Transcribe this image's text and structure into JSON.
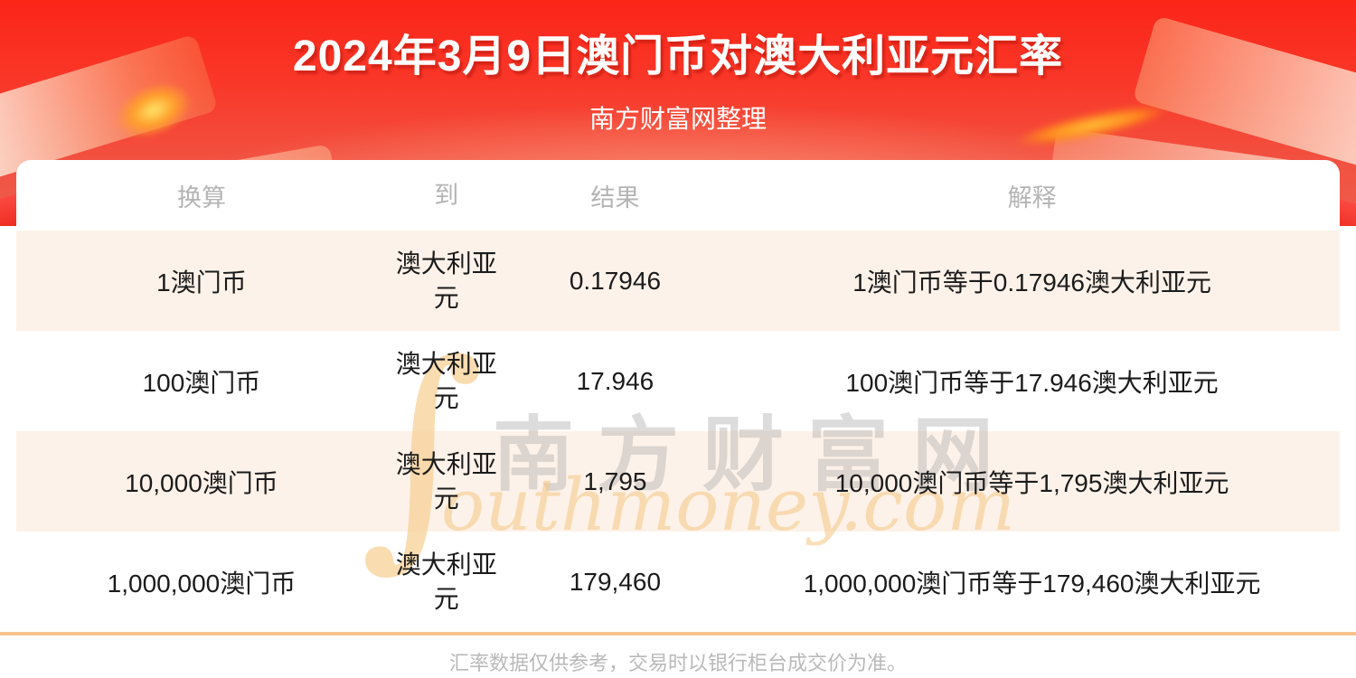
{
  "page": {
    "title": "2024年3月9日澳门币对澳大利亚元汇率",
    "subtitle": "南方财富网整理",
    "footer_note": "汇率数据仅供参考，交易时以银行柜台成交价为准。"
  },
  "watermark": {
    "swash": "∫",
    "cn": "南方财富网",
    "en": "outhmoney.com"
  },
  "colors": {
    "hero_red_top": "#fb2518",
    "hero_red_bottom": "#ee5f4c",
    "row_alt": "#fdf2e9",
    "divider": "#f9c48c",
    "header_text": "#b4b4b4",
    "body_text": "#1b1b1b",
    "watermark_gold": "#f4c684"
  },
  "table": {
    "headers": [
      "换算",
      "到",
      "结果",
      "解释"
    ],
    "rows": [
      {
        "convert": "1澳门币",
        "to": "澳大利亚元",
        "result": "0.17946",
        "explain": "1澳门币等于0.17946澳大利亚元"
      },
      {
        "convert": "100澳门币",
        "to": "澳大利亚元",
        "result": "17.946",
        "explain": "100澳门币等于17.946澳大利亚元"
      },
      {
        "convert": "10,000澳门币",
        "to": "澳大利亚元",
        "result": "1,795",
        "explain": "10,000澳门币等于1,795澳大利亚元"
      },
      {
        "convert": "1,000,000澳门币",
        "to": "澳大利亚元",
        "result": "179,460",
        "explain": "1,000,000澳门币等于179,460澳大利亚元"
      }
    ]
  }
}
